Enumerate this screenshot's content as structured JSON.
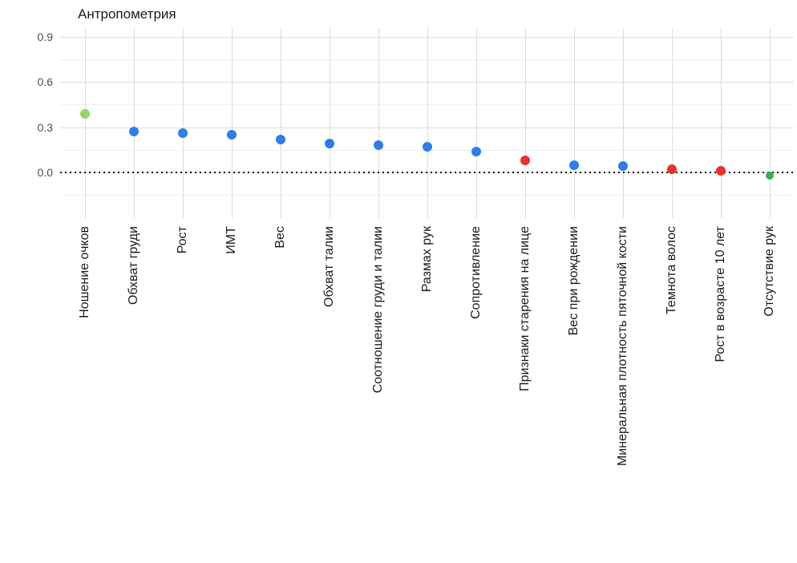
{
  "chart_data": {
    "type": "scatter",
    "title": "Антропометрия",
    "xlabel": "",
    "ylabel": "",
    "grid": true,
    "legend": "none",
    "categories": [
      "Ношение очков",
      "Обхват груди",
      "Рост",
      "ИМТ",
      "Вес",
      "Обхват талии",
      "Соотношение груди и талии",
      "Размах рук",
      "Сопротивление",
      "Признаки старения на лице",
      "Вес при рождении",
      "Минеральная плотность пяточной кости",
      "Темнота волос",
      "Рост в возрасте 10 лет",
      "Отсутствие рук"
    ],
    "values": [
      0.39,
      0.27,
      0.26,
      0.25,
      0.22,
      0.19,
      0.18,
      0.17,
      0.14,
      0.08,
      0.05,
      0.04,
      0.02,
      0.01,
      -0.02
    ],
    "point_colors": [
      "lightgreen",
      "blue",
      "blue",
      "blue",
      "blue",
      "blue",
      "blue",
      "blue",
      "blue",
      "red",
      "blue",
      "blue",
      "red",
      "red",
      "green"
    ],
    "palette": {
      "blue": "#2E7DE8",
      "red": "#E8312E",
      "lightgreen": "#8FD964",
      "green": "#3CB043"
    },
    "y_ticks": [
      0.0,
      0.3,
      0.6,
      0.9
    ],
    "y_tick_labels": [
      "0.0",
      "0.3",
      "0.6",
      "0.9"
    ],
    "y_minor_gridlines": [
      -0.15,
      0.15,
      0.45,
      0.75
    ],
    "ylim": [
      -0.29,
      0.96
    ],
    "zero_line": 0.0
  }
}
